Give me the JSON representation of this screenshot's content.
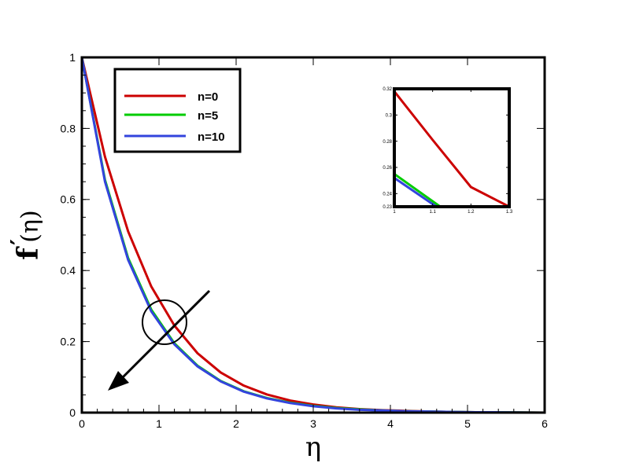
{
  "chart_data": [
    {
      "type": "line",
      "xlabel": "η",
      "ylabel_main": "f",
      "ylabel_prime": "′",
      "ylabel_arg": "(η)",
      "xlim": [
        0,
        6
      ],
      "ylim": [
        0,
        1
      ],
      "x_ticks": [
        "0",
        "1",
        "2",
        "3",
        "4",
        "5",
        "6"
      ],
      "y_ticks": [
        "0",
        "0.2",
        "0.4",
        "0.6",
        "0.8",
        "1"
      ],
      "legend_position": "top-left",
      "grid": false,
      "series": [
        {
          "name": "n=0",
          "color": "#cc0000",
          "points": [
            [
              0,
              1
            ],
            [
              0.3,
              0.72
            ],
            [
              0.6,
              0.51
            ],
            [
              0.9,
              0.355
            ],
            [
              1.2,
              0.245
            ],
            [
              1.5,
              0.167
            ],
            [
              1.8,
              0.113
            ],
            [
              2.1,
              0.076
            ],
            [
              2.4,
              0.051
            ],
            [
              2.7,
              0.034
            ],
            [
              3.0,
              0.023
            ],
            [
              3.3,
              0.015
            ],
            [
              3.6,
              0.01
            ],
            [
              3.9,
              0.007
            ],
            [
              4.2,
              0.005
            ],
            [
              4.5,
              0.003
            ],
            [
              4.8,
              0.002
            ],
            [
              5.1,
              0.001
            ],
            [
              5.4,
              0.001
            ],
            [
              6,
              0
            ]
          ]
        },
        {
          "name": "n=5",
          "color": "#00cc00",
          "points": [
            [
              0,
              1
            ],
            [
              0.3,
              0.655
            ],
            [
              0.6,
              0.435
            ],
            [
              0.9,
              0.29
            ],
            [
              1.2,
              0.195
            ],
            [
              1.5,
              0.132
            ],
            [
              1.8,
              0.089
            ],
            [
              2.1,
              0.06
            ],
            [
              2.4,
              0.041
            ],
            [
              2.7,
              0.028
            ],
            [
              3.0,
              0.019
            ],
            [
              3.3,
              0.013
            ],
            [
              3.6,
              0.009
            ],
            [
              3.9,
              0.006
            ],
            [
              4.2,
              0.004
            ],
            [
              4.5,
              0.003
            ],
            [
              4.8,
              0.002
            ],
            [
              5.1,
              0.001
            ],
            [
              5.4,
              0.001
            ],
            [
              6,
              0
            ]
          ]
        },
        {
          "name": "n=10",
          "color": "#3344dd",
          "points": [
            [
              0,
              1
            ],
            [
              0.3,
              0.65
            ],
            [
              0.6,
              0.43
            ],
            [
              0.9,
              0.285
            ],
            [
              1.2,
              0.192
            ],
            [
              1.5,
              0.13
            ],
            [
              1.8,
              0.088
            ],
            [
              2.1,
              0.059
            ],
            [
              2.4,
              0.04
            ],
            [
              2.7,
              0.027
            ],
            [
              3.0,
              0.018
            ],
            [
              3.3,
              0.012
            ],
            [
              3.6,
              0.008
            ],
            [
              3.9,
              0.006
            ],
            [
              4.2,
              0.004
            ],
            [
              4.5,
              0.003
            ],
            [
              4.8,
              0.002
            ],
            [
              5.1,
              0.001
            ],
            [
              5.4,
              0.001
            ],
            [
              6,
              0
            ]
          ]
        }
      ]
    },
    {
      "type": "line",
      "role": "inset",
      "xlim": [
        1,
        1.3
      ],
      "ylim": [
        0.23,
        0.32
      ],
      "x_ticks": [
        "1",
        "1.1",
        "1.2",
        "1.3"
      ],
      "y_ticks": [
        "0.23",
        "0.24",
        "0.26",
        "0.28",
        "0.3",
        "0.32"
      ],
      "series": [
        {
          "name": "n=0",
          "color": "#cc0000",
          "points": [
            [
              1,
              0.318
            ],
            [
              1.1,
              0.281
            ],
            [
              1.2,
              0.245
            ],
            [
              1.3,
              0.23
            ]
          ]
        },
        {
          "name": "n=5",
          "color": "#00cc00",
          "points": [
            [
              1,
              0.255
            ],
            [
              1.12,
              0.23
            ]
          ]
        },
        {
          "name": "n=10",
          "color": "#3344dd",
          "points": [
            [
              1,
              0.252
            ],
            [
              1.11,
              0.23
            ]
          ]
        }
      ]
    }
  ]
}
